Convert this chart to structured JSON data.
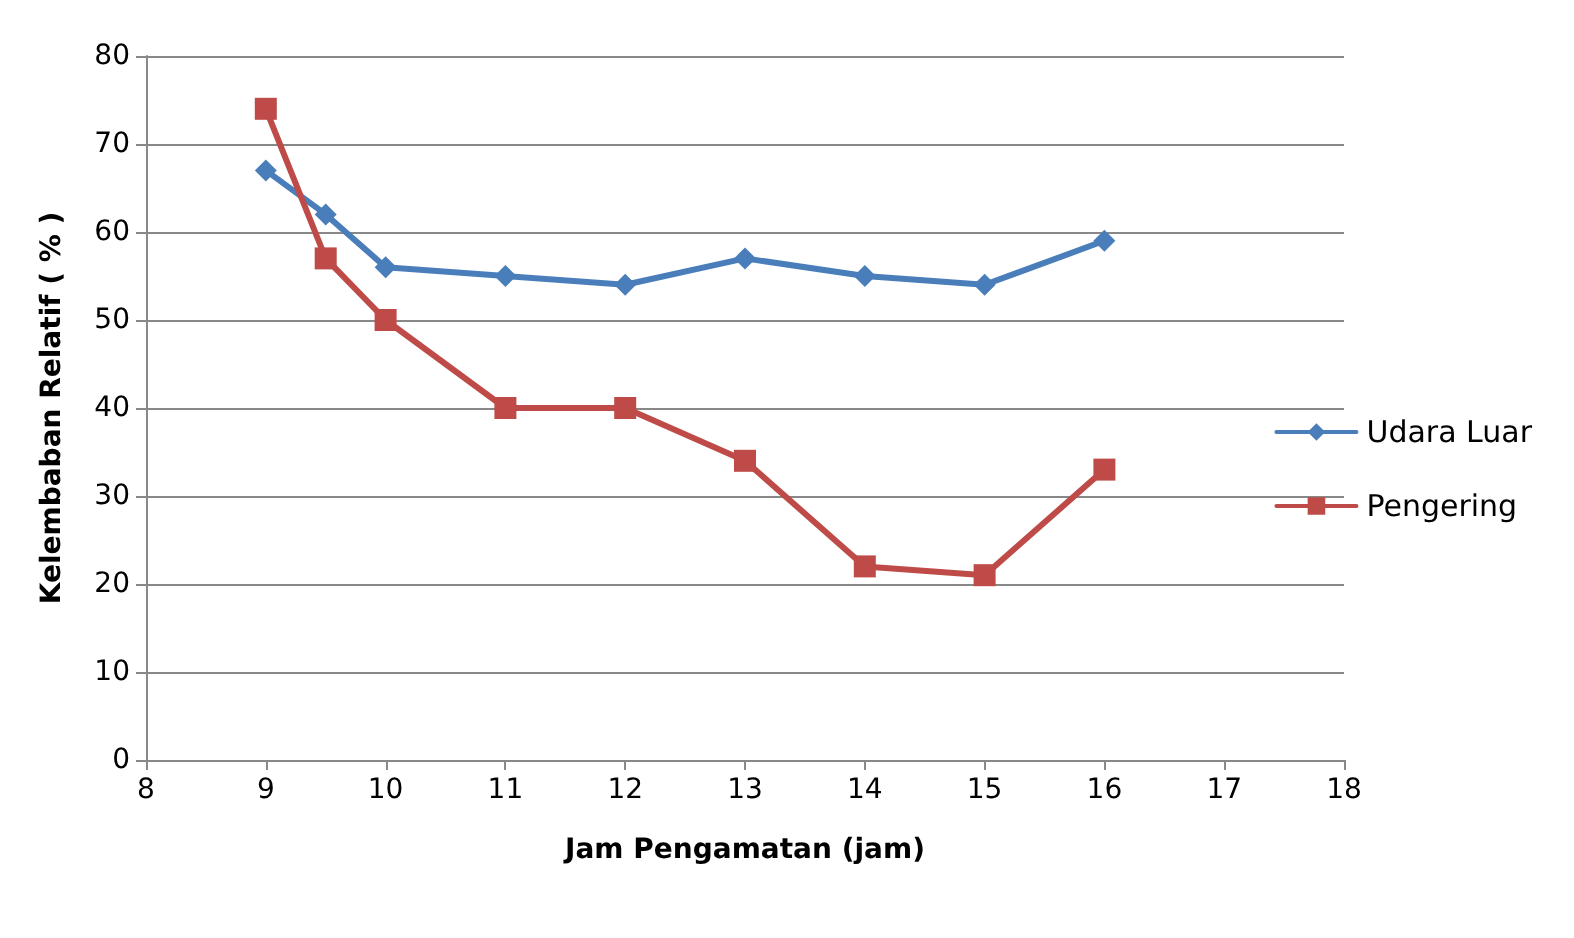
{
  "chart_data": {
    "type": "line",
    "xlabel": "Jam Pengamatan (jam)",
    "ylabel": "Kelembaban Relatif ( % )",
    "x": [
      9,
      9.5,
      10,
      11,
      12,
      13,
      14,
      15,
      16
    ],
    "series": [
      {
        "name": "Udara Luar",
        "color": "#4a7ebb",
        "marker": "diamond",
        "values": [
          67,
          62,
          56,
          55,
          54,
          57,
          55,
          54,
          59
        ]
      },
      {
        "name": "Pengering",
        "color": "#be4b48",
        "marker": "square",
        "values": [
          74,
          57,
          50,
          40,
          40,
          34,
          22,
          21,
          33
        ]
      }
    ],
    "xlim": [
      8,
      18
    ],
    "xticks": [
      8,
      9,
      10,
      11,
      12,
      13,
      14,
      15,
      16,
      17,
      18
    ],
    "ylim": [
      0,
      80
    ],
    "yticks": [
      0,
      10,
      20,
      30,
      40,
      50,
      60,
      70,
      80
    ],
    "grid": "y",
    "legend": "right",
    "line_style": "solid"
  }
}
